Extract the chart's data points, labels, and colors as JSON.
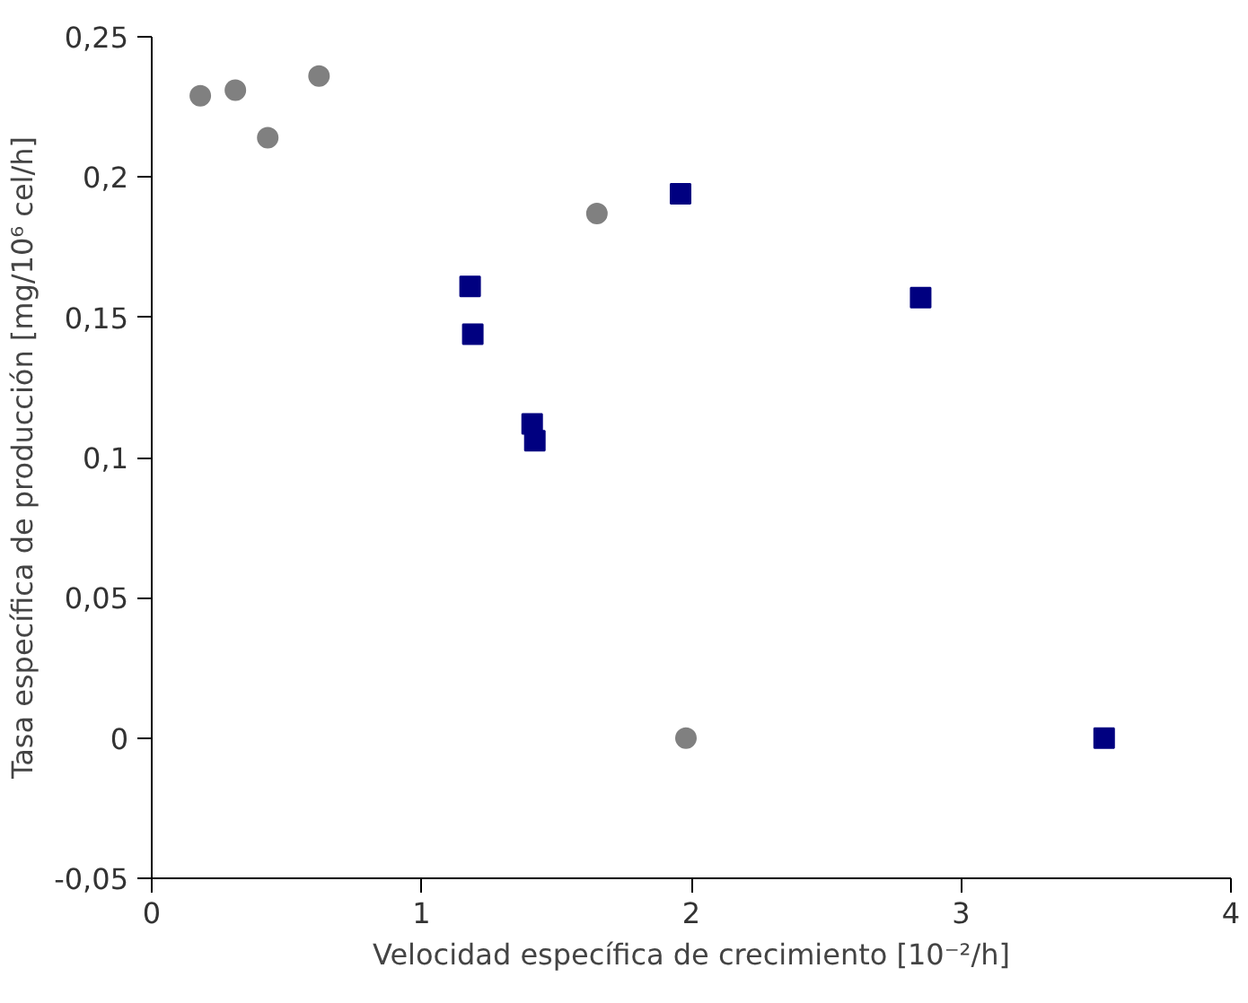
{
  "chart_data": {
    "type": "scatter",
    "xlabel": "Velocidad específica de crecimiento [10⁻²/h]",
    "ylabel": "Tasa específica de producción [mg/10⁶ cel/h]",
    "xlim": [
      0,
      4
    ],
    "xticks": [
      0,
      1,
      2,
      3,
      4
    ],
    "ylim": [
      -0.05,
      0.25
    ],
    "yticks": [
      {
        "value": -0.05,
        "label": "-0,05"
      },
      {
        "value": 0,
        "label": "0"
      },
      {
        "value": 0.05,
        "label": "0,05"
      },
      {
        "value": 0.1,
        "label": "0,1"
      },
      {
        "value": 0.15,
        "label": "0,15"
      },
      {
        "value": 0.2,
        "label": "0,2"
      },
      {
        "value": 0.25,
        "label": "0,25"
      }
    ],
    "grid": false,
    "series": [
      {
        "color": "#808080",
        "marker": "circle",
        "x": [
          0.18,
          0.31,
          0.43,
          0.62,
          1.65,
          1.98
        ],
        "values": [
          0.229,
          0.231,
          0.214,
          0.236,
          0.187,
          0
        ]
      },
      {
        "color": "#000080",
        "marker": "square",
        "x": [
          1.18,
          1.19,
          1.41,
          1.42,
          1.96,
          2.85,
          3.53
        ],
        "values": [
          0.161,
          0.144,
          0.112,
          0.106,
          0.194,
          0.157,
          0
        ]
      }
    ]
  }
}
